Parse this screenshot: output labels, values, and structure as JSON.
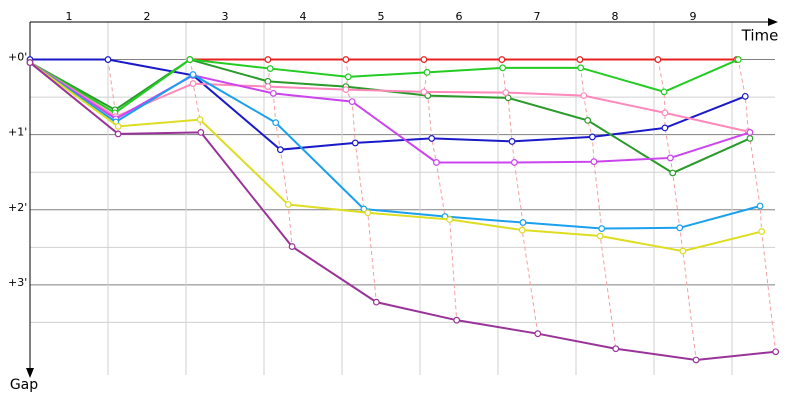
{
  "chart_data": {
    "type": "line",
    "x_label": "Time",
    "y_label": "Gap",
    "xlim": [
      0,
      9.6
    ],
    "ylim": [
      -0.5,
      4.2
    ],
    "xticks": [
      {
        "value": 0.5,
        "label": "1"
      },
      {
        "value": 1.5,
        "label": "2"
      },
      {
        "value": 2.5,
        "label": "3"
      },
      {
        "value": 3.5,
        "label": "4"
      },
      {
        "value": 4.5,
        "label": "5"
      },
      {
        "value": 5.5,
        "label": "6"
      },
      {
        "value": 6.5,
        "label": "7"
      },
      {
        "value": 7.5,
        "label": "8"
      },
      {
        "value": 8.5,
        "label": "9"
      }
    ],
    "xgrid": [
      1,
      2,
      3,
      4,
      5,
      6,
      7,
      8,
      9
    ],
    "yticks": [
      {
        "value": 0,
        "label": "+0'"
      },
      {
        "value": 1,
        "label": "+1'"
      },
      {
        "value": 2,
        "label": "+2'"
      },
      {
        "value": 3,
        "label": "+3'"
      }
    ],
    "minor_yticks": [
      0.5,
      1.5,
      2.5,
      3.5
    ],
    "series": [
      {
        "color": "#e82020",
        "x": [
          2.05,
          3.05,
          4.05,
          5.05,
          6.05,
          7.05,
          8.05,
          9.06
        ],
        "values": [
          0,
          0,
          0,
          0,
          0,
          0,
          0,
          0
        ]
      },
      {
        "color": "#1a1ac8",
        "x": [
          0,
          1,
          2.09,
          3.21,
          4.17,
          5.15,
          6.18,
          7.21,
          8.14,
          9.17
        ],
        "values": [
          0,
          0,
          0.21,
          1.2,
          1.11,
          1.05,
          1.09,
          1.03,
          0.91,
          0.49
        ]
      },
      {
        "color": "#2a9a2a",
        "x": [
          0,
          1.09,
          2.05,
          3.05,
          4.05,
          5.1,
          6.13,
          7.15,
          8.24,
          9.23
        ],
        "values": [
          0.04,
          0.67,
          0,
          0.29,
          0.36,
          0.48,
          0.51,
          0.81,
          1.51,
          1.05
        ]
      },
      {
        "color": "#22cc22",
        "x": [
          0,
          1.09,
          2.05,
          3.08,
          4.08,
          5.09,
          6.06,
          7.06,
          8.13,
          9.08
        ],
        "values": [
          0.04,
          0.71,
          0,
          0.12,
          0.23,
          0.17,
          0.11,
          0.11,
          0.43,
          0
        ]
      },
      {
        "color": "#ff88bb",
        "x": [
          0,
          1.1,
          2.09,
          3.05,
          4.05,
          5.05,
          6.1,
          7.1,
          8.14,
          9.21
        ],
        "values": [
          0.04,
          0.76,
          0.32,
          0.36,
          0.4,
          0.43,
          0.44,
          0.48,
          0.71,
          0.96
        ]
      },
      {
        "color": "#cc44ee",
        "x": [
          0,
          1.1,
          2.09,
          3.12,
          4.13,
          5.21,
          6.21,
          7.23,
          8.21,
          9.23
        ],
        "values": [
          0.04,
          0.79,
          0.21,
          0.45,
          0.56,
          1.37,
          1.37,
          1.36,
          1.31,
          0.97
        ]
      },
      {
        "color": "#1aa0ee",
        "x": [
          0,
          1.1,
          2.09,
          3.15,
          4.28,
          5.32,
          6.32,
          7.33,
          8.33,
          9.36
        ],
        "values": [
          0.04,
          0.83,
          0.2,
          0.84,
          1.99,
          2.09,
          2.17,
          2.25,
          2.24,
          1.95
        ]
      },
      {
        "color": "#dddd22",
        "x": [
          0,
          1.13,
          2.18,
          3.31,
          4.33,
          5.38,
          6.31,
          7.31,
          8.37,
          9.38
        ],
        "values": [
          0.04,
          0.89,
          0.8,
          1.93,
          2.04,
          2.13,
          2.27,
          2.35,
          2.55,
          2.29
        ]
      },
      {
        "color": "#993399",
        "x": [
          0,
          1.13,
          2.19,
          3.36,
          4.44,
          5.47,
          6.51,
          7.51,
          8.54,
          9.56
        ],
        "values": [
          0.04,
          0.99,
          0.97,
          2.49,
          3.23,
          3.47,
          3.65,
          3.85,
          4.0,
          3.89
        ]
      }
    ]
  }
}
